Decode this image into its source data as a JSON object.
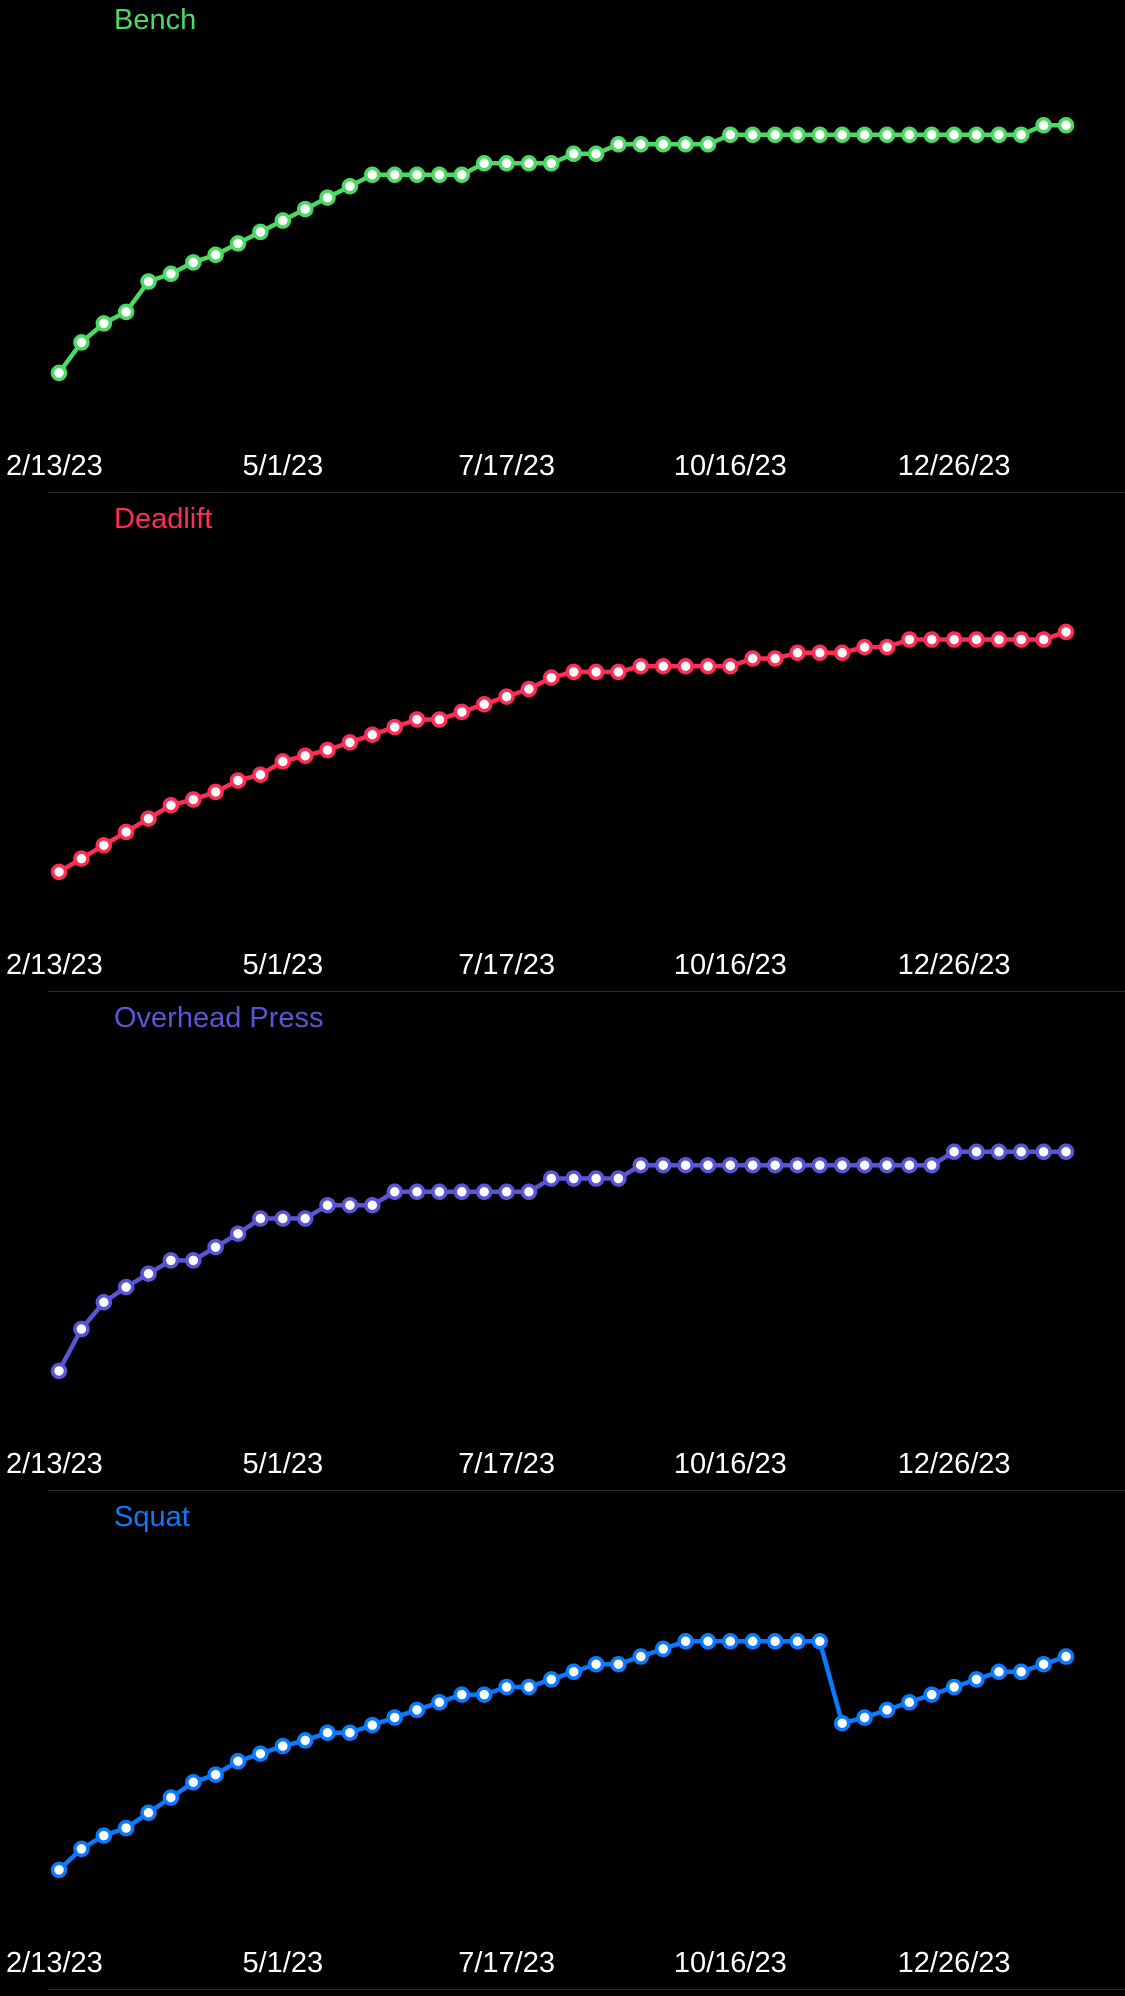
{
  "colors": {
    "background": "#000000",
    "label": "#ffffff",
    "divider": "#2b2b2b",
    "marker_fill": "#ffffff"
  },
  "chart_data": [
    {
      "type": "line",
      "title": "Bench",
      "color": "#4cd964",
      "x_tick_labels": [
        "2/13/23",
        "5/1/23",
        "7/17/23",
        "10/16/23",
        "12/26/23"
      ],
      "x_tick_indices": [
        0,
        10,
        20,
        30,
        40
      ],
      "x_range": [
        "2/13/23",
        "1/29/24"
      ],
      "grid": false,
      "y_axis_labels_shown": false,
      "ylim": [
        0,
        100
      ],
      "series": [
        {
          "values": [
            10,
            18,
            23,
            26,
            34,
            36,
            39,
            41,
            44,
            47,
            50,
            53,
            56,
            59,
            62,
            62,
            62,
            62,
            62,
            65,
            65,
            65,
            65,
            67.5,
            67.5,
            70,
            70,
            70,
            70,
            70,
            72.5,
            72.5,
            72.5,
            72.5,
            72.5,
            72.5,
            72.5,
            72.5,
            72.5,
            72.5,
            72.5,
            72.5,
            72.5,
            72.5,
            75,
            75
          ]
        }
      ]
    },
    {
      "type": "line",
      "title": "Deadlift",
      "color": "#ff2d55",
      "x_tick_labels": [
        "2/13/23",
        "5/1/23",
        "7/17/23",
        "10/16/23",
        "12/26/23"
      ],
      "x_tick_indices": [
        0,
        10,
        20,
        30,
        40
      ],
      "x_range": [
        "2/13/23",
        "1/29/24"
      ],
      "grid": false,
      "y_axis_labels_shown": false,
      "ylim": [
        0,
        100
      ],
      "series": [
        {
          "values": [
            10,
            13.5,
            17,
            20.5,
            24,
            27.5,
            29,
            31,
            34,
            35.5,
            39,
            40.5,
            42,
            44,
            46,
            48,
            50,
            50,
            52,
            54,
            56,
            58,
            61,
            62.5,
            62.5,
            62.5,
            64,
            64,
            64,
            64,
            64,
            66,
            66,
            67.5,
            67.5,
            67.5,
            69,
            69,
            71,
            71,
            71,
            71,
            71,
            71,
            71,
            73
          ]
        }
      ]
    },
    {
      "type": "line",
      "title": "Overhead Press",
      "color": "#5856d6",
      "x_tick_labels": [
        "2/13/23",
        "5/1/23",
        "7/17/23",
        "10/16/23",
        "12/26/23"
      ],
      "x_tick_indices": [
        0,
        10,
        20,
        30,
        40
      ],
      "x_range": [
        "2/13/23",
        "1/29/24"
      ],
      "grid": false,
      "y_axis_labels_shown": false,
      "ylim": [
        0,
        100
      ],
      "series": [
        {
          "values": [
            10,
            21,
            28,
            32,
            35.5,
            39,
            39,
            42.5,
            46,
            50,
            50,
            50,
            53.5,
            53.5,
            53.5,
            57,
            57,
            57,
            57,
            57,
            57,
            57,
            60.5,
            60.5,
            60.5,
            60.5,
            64,
            64,
            64,
            64,
            64,
            64,
            64,
            64,
            64,
            64,
            64,
            64,
            64,
            64,
            67.5,
            67.5,
            67.5,
            67.5,
            67.5,
            67.5
          ]
        }
      ]
    },
    {
      "type": "line",
      "title": "Squat",
      "color": "#0a7aff",
      "x_tick_labels": [
        "2/13/23",
        "5/1/23",
        "7/17/23",
        "10/16/23",
        "12/26/23"
      ],
      "x_tick_indices": [
        0,
        10,
        20,
        30,
        40
      ],
      "x_range": [
        "2/13/23",
        "1/29/24"
      ],
      "grid": false,
      "y_axis_labels_shown": false,
      "ylim": [
        0,
        100
      ],
      "series": [
        {
          "values": [
            10,
            15.5,
            19,
            21,
            25,
            29,
            33,
            35,
            38.5,
            40.5,
            42.5,
            44,
            46,
            46,
            48,
            50,
            52,
            54,
            56,
            56,
            58,
            58,
            60,
            62,
            64,
            64,
            66,
            68,
            70,
            70,
            70,
            70,
            70,
            70,
            70,
            48.5,
            50,
            52,
            54,
            56,
            58,
            60,
            62,
            62,
            64,
            66
          ]
        }
      ]
    }
  ]
}
